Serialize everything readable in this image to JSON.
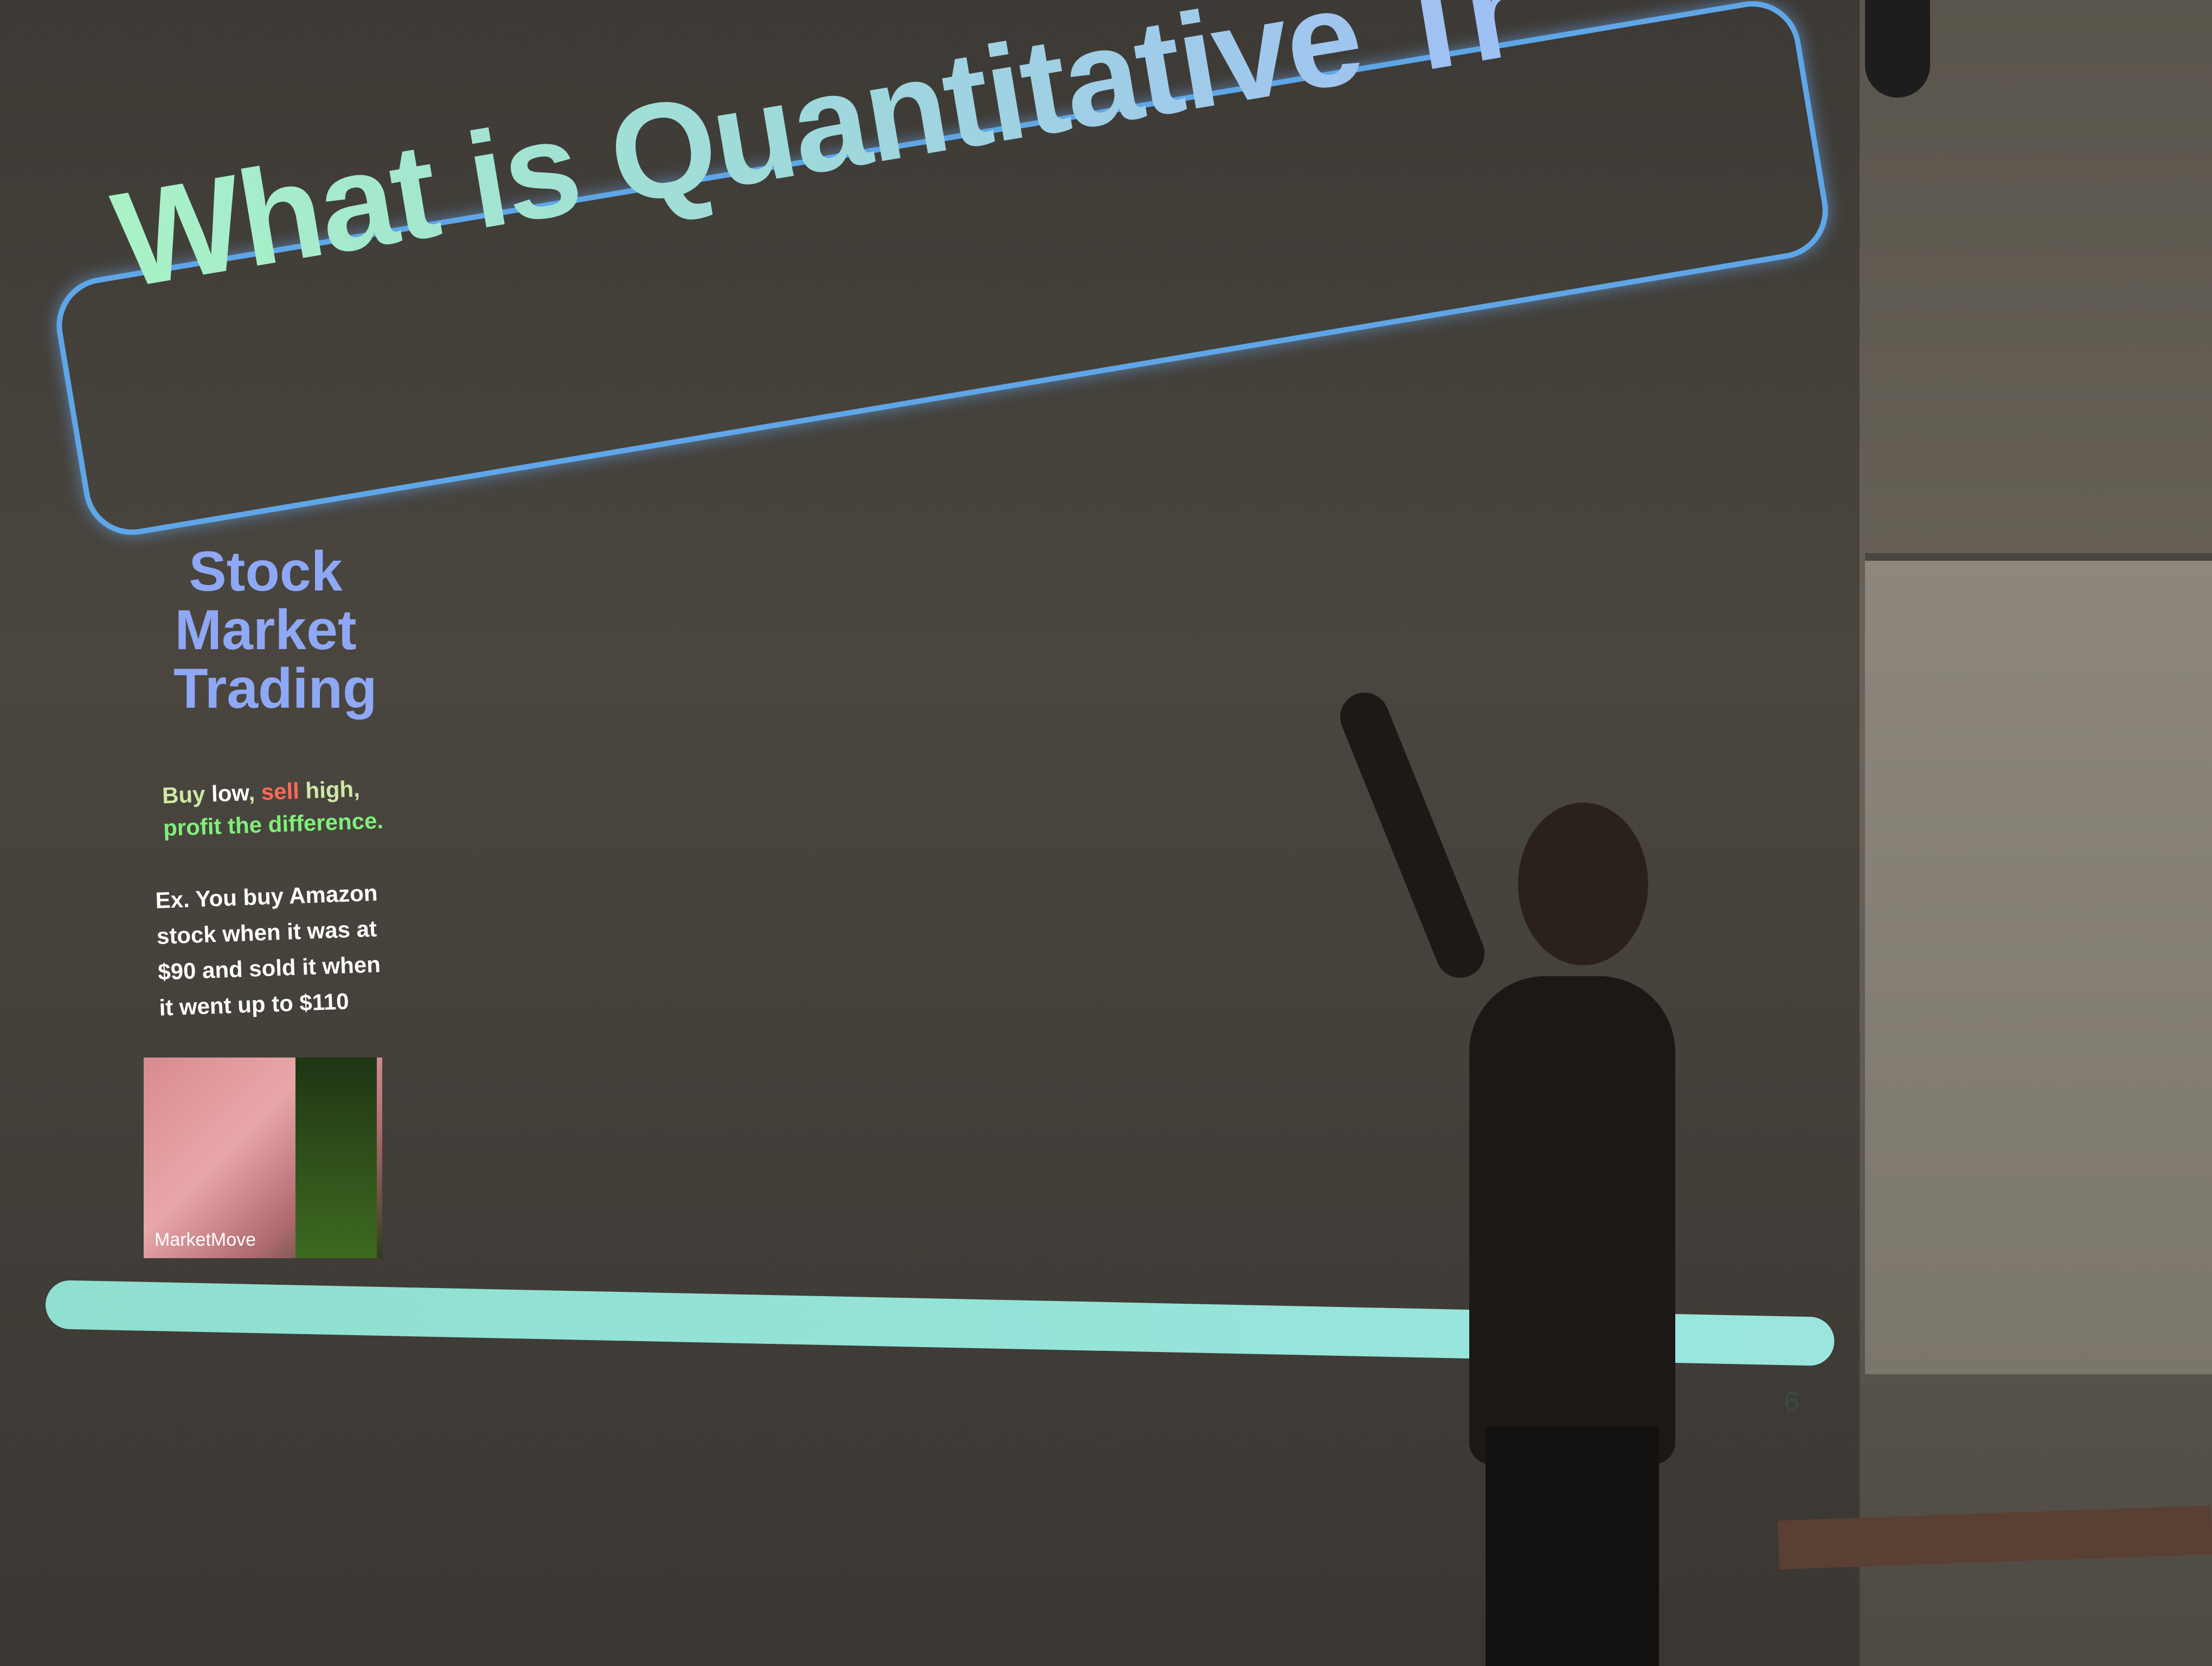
{
  "slide": {
    "title": "What is Quantitative Trading?",
    "side_heading": [
      "Stock",
      "Market",
      "Trading"
    ],
    "tagline": {
      "part1": "Buy ",
      "low": "low",
      "sep1": ", ",
      "sell": "sell",
      "part2": " high, ",
      "profit": "profit",
      "part3": " the difference."
    },
    "example": "Ex. You buy Amazon stock when it was at $90 and sold it when it went up to $110",
    "image_caption": "MarketMove",
    "page_number": "6"
  },
  "colors": {
    "title_gradient_start": "#a8f2c6",
    "title_gradient_end": "#9fbff5",
    "frame": "#5fa6e8",
    "heading": "#8fa8f5",
    "sell": "#ff6a5a",
    "profit": "#7ef07a",
    "progress_bar": "#8fe0d0"
  }
}
